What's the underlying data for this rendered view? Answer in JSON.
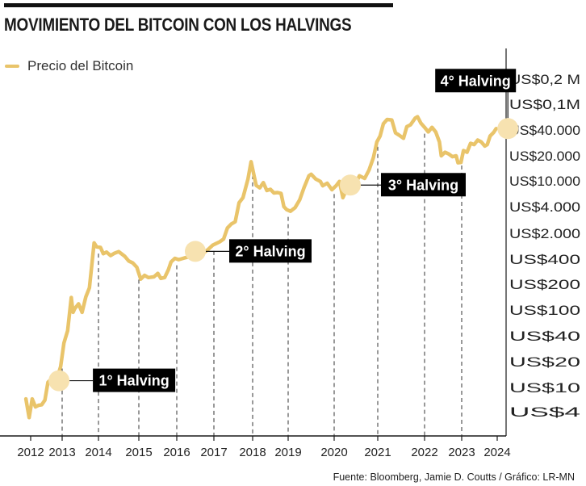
{
  "chart_data": {
    "type": "line",
    "title": "MOVIMIENTO DEL BITCOIN CON LOS HALVINGS",
    "series": [
      {
        "name": "Precio del Bitcoin",
        "color": "#e9c46a",
        "points": [
          [
            2011.85,
            6.5
          ],
          [
            2011.95,
            3.2
          ],
          [
            2012.05,
            6.5
          ],
          [
            2012.15,
            4.8
          ],
          [
            2012.25,
            5.1
          ],
          [
            2012.35,
            5.2
          ],
          [
            2012.45,
            6.2
          ],
          [
            2012.55,
            11.5
          ],
          [
            2012.65,
            12.5
          ],
          [
            2012.75,
            11.2
          ],
          [
            2012.85,
            13.2
          ],
          [
            2012.95,
            17.5
          ],
          [
            2013.05,
            33
          ],
          [
            2013.15,
            48
          ],
          [
            2013.25,
            140
          ],
          [
            2013.3,
            92
          ],
          [
            2013.35,
            104
          ],
          [
            2013.45,
            118
          ],
          [
            2013.55,
            92
          ],
          [
            2013.65,
            142
          ],
          [
            2013.75,
            182
          ],
          [
            2013.88,
            1100
          ],
          [
            2013.95,
            860
          ],
          [
            2014.05,
            830
          ],
          [
            2014.12,
            560
          ],
          [
            2014.2,
            620
          ],
          [
            2014.3,
            500
          ],
          [
            2014.4,
            580
          ],
          [
            2014.5,
            640
          ],
          [
            2014.55,
            580
          ],
          [
            2014.65,
            480
          ],
          [
            2014.75,
            380
          ],
          [
            2014.85,
            360
          ],
          [
            2014.95,
            320
          ],
          [
            2015.05,
            230
          ],
          [
            2015.15,
            255
          ],
          [
            2015.25,
            240
          ],
          [
            2015.4,
            245
          ],
          [
            2015.5,
            270
          ],
          [
            2015.58,
            235
          ],
          [
            2015.68,
            240
          ],
          [
            2015.78,
            300
          ],
          [
            2015.85,
            370
          ],
          [
            2015.95,
            420
          ],
          [
            2016.05,
            395
          ],
          [
            2016.2,
            430
          ],
          [
            2016.3,
            455
          ],
          [
            2016.4,
            610
          ],
          [
            2016.47,
            720
          ],
          [
            2016.6,
            650
          ],
          [
            2016.75,
            620
          ],
          [
            2016.85,
            740
          ],
          [
            2016.97,
            960
          ],
          [
            2017.05,
            1050
          ],
          [
            2017.15,
            1180
          ],
          [
            2017.25,
            1400
          ],
          [
            2017.35,
            2300
          ],
          [
            2017.45,
            2550
          ],
          [
            2017.55,
            2700
          ],
          [
            2017.65,
            4600
          ],
          [
            2017.75,
            5500
          ],
          [
            2017.88,
            10500
          ],
          [
            2017.96,
            17000
          ],
          [
            2018.05,
            11000
          ],
          [
            2018.1,
            8500
          ],
          [
            2018.2,
            7800
          ],
          [
            2018.3,
            9400
          ],
          [
            2018.4,
            7100
          ],
          [
            2018.5,
            7400
          ],
          [
            2018.6,
            6500
          ],
          [
            2018.7,
            6600
          ],
          [
            2018.8,
            6400
          ],
          [
            2018.88,
            4000
          ],
          [
            2018.96,
            3700
          ],
          [
            2019.05,
            3550
          ],
          [
            2019.15,
            3900
          ],
          [
            2019.25,
            5100
          ],
          [
            2019.35,
            8000
          ],
          [
            2019.45,
            11500
          ],
          [
            2019.5,
            12000
          ],
          [
            2019.6,
            10500
          ],
          [
            2019.7,
            9800
          ],
          [
            2019.75,
            8400
          ],
          [
            2019.85,
            9200
          ],
          [
            2019.95,
            7300
          ],
          [
            2020.05,
            8500
          ],
          [
            2020.12,
            9800
          ],
          [
            2020.2,
            5500
          ],
          [
            2020.3,
            7800
          ],
          [
            2020.38,
            9200
          ],
          [
            2020.5,
            9300
          ],
          [
            2020.58,
            11500
          ],
          [
            2020.7,
            10700
          ],
          [
            2020.8,
            13500
          ],
          [
            2020.9,
            19000
          ],
          [
            2020.98,
            29000
          ],
          [
            2021.05,
            34000
          ],
          [
            2021.12,
            50000
          ],
          [
            2021.2,
            58000
          ],
          [
            2021.3,
            57000
          ],
          [
            2021.38,
            37000
          ],
          [
            2021.45,
            35000
          ],
          [
            2021.55,
            32000
          ],
          [
            2021.62,
            45000
          ],
          [
            2021.7,
            48000
          ],
          [
            2021.8,
            61000
          ],
          [
            2021.85,
            64000
          ],
          [
            2021.92,
            51000
          ],
          [
            2022.0,
            44000
          ],
          [
            2022.1,
            38000
          ],
          [
            2022.2,
            44000
          ],
          [
            2022.3,
            38000
          ],
          [
            2022.4,
            29000
          ],
          [
            2022.45,
            20000
          ],
          [
            2022.55,
            22000
          ],
          [
            2022.65,
            21000
          ],
          [
            2022.75,
            19500
          ],
          [
            2022.85,
            20000
          ],
          [
            2022.9,
            16500
          ],
          [
            2022.98,
            16700
          ],
          [
            2023.05,
            23000
          ],
          [
            2023.15,
            22000
          ],
          [
            2023.25,
            28000
          ],
          [
            2023.35,
            27000
          ],
          [
            2023.45,
            30500
          ],
          [
            2023.55,
            29000
          ],
          [
            2023.65,
            26000
          ],
          [
            2023.72,
            27000
          ],
          [
            2023.8,
            34000
          ],
          [
            2023.9,
            37500
          ],
          [
            2023.97,
            42000
          ]
        ]
      }
    ],
    "x_ticks": [
      "2012",
      "2013",
      "2014",
      "2015",
      "2016",
      "2017",
      "2018",
      "2019",
      "2020",
      "2021",
      "2022",
      "2023",
      "2024"
    ],
    "x_range": [
      2011.8,
      2024.3
    ],
    "y_ticks": [
      "US$0,2 M",
      "US$0,1M",
      "US$40.000",
      "US$20.000",
      "US$10.000",
      "US$4.000",
      "US$2.000",
      "US$400",
      "US$200",
      "US$100",
      "US$40",
      "US$20",
      "US$10",
      "US$4"
    ],
    "y_scale": "log-like (labelled ticks, unequal steps)",
    "y_position": "right",
    "grid": "dashed vertical drop lines at halvings and 2013-2023",
    "halvings": [
      {
        "label": "1° Halving",
        "date": 2012.9,
        "price": 12
      },
      {
        "label": "2° Halving",
        "date": 2016.5,
        "price": 650
      },
      {
        "label": "3° Halving",
        "date": 2020.37,
        "price": 8600
      },
      {
        "label": "4° Halving",
        "date": 2024.3,
        "price": 42000
      }
    ],
    "legend": "top-left"
  },
  "header": {
    "title": "MOVIMIENTO DEL BITCOIN CON LOS HALVINGS"
  },
  "legend": {
    "label": "Precio del Bitcoin"
  },
  "source": "Fuente: Bloomberg, Jamie D. Coutts / Gráfico: LR-MN",
  "colors": {
    "line": "#e9c46a",
    "marker": "#f7e2b0",
    "label_bg": "#000000",
    "label_text": "#ffffff",
    "axis": "#1a1a1a"
  }
}
